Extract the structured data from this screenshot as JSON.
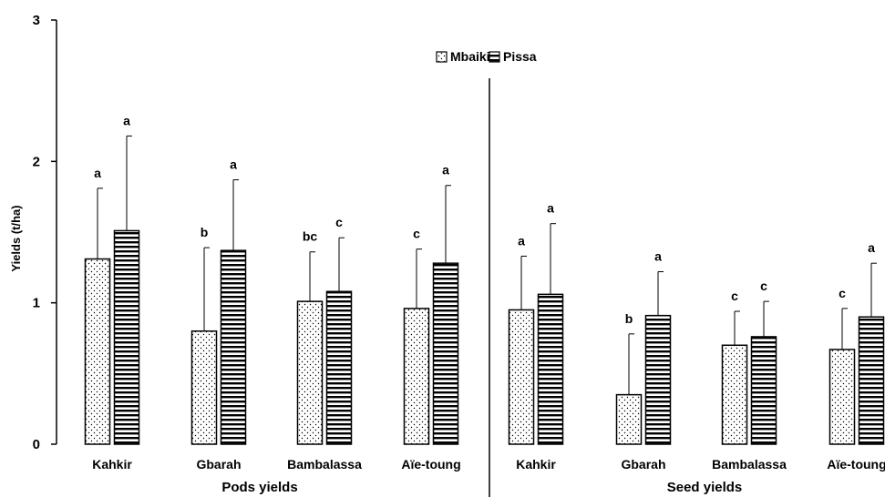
{
  "chart_data": {
    "type": "bar",
    "ylabel": "Yields (t/ha)",
    "ylim": [
      0,
      3
    ],
    "yticks": [
      "0",
      "1",
      "2",
      "3"
    ],
    "grid": false,
    "legend_position": "top-center",
    "series": [
      {
        "name": "Mbaiki",
        "pattern": "dots"
      },
      {
        "name": "Pissa",
        "pattern": "horizontal-stripes"
      }
    ],
    "groups": [
      {
        "label": "Pods yields",
        "categories": [
          {
            "label": "Kahkir",
            "values": [
              1.31,
              1.51
            ],
            "errors": [
              0.5,
              0.67
            ],
            "sig": [
              "a",
              "a"
            ]
          },
          {
            "label": "Gbarah",
            "values": [
              0.8,
              1.37
            ],
            "errors": [
              0.59,
              0.5
            ],
            "sig": [
              "b",
              "a"
            ]
          },
          {
            "label": "Bambalassa",
            "values": [
              1.01,
              1.08
            ],
            "errors": [
              0.35,
              0.38
            ],
            "sig": [
              "bc",
              "c"
            ]
          },
          {
            "label": "Aïe-toung",
            "values": [
              0.96,
              1.28
            ],
            "errors": [
              0.42,
              0.55
            ],
            "sig": [
              "c",
              "a"
            ]
          }
        ]
      },
      {
        "label": "Seed yields",
        "categories": [
          {
            "label": "Kahkir",
            "values": [
              0.95,
              1.06
            ],
            "errors": [
              0.38,
              0.5
            ],
            "sig": [
              "a",
              "a"
            ]
          },
          {
            "label": "Gbarah",
            "values": [
              0.35,
              0.91
            ],
            "errors": [
              0.43,
              0.31
            ],
            "sig": [
              "b",
              "a"
            ]
          },
          {
            "label": "Bambalassa",
            "values": [
              0.7,
              0.76
            ],
            "errors": [
              0.24,
              0.25
            ],
            "sig": [
              "c",
              "c"
            ]
          },
          {
            "label": "Aïe-toung",
            "values": [
              0.67,
              0.9
            ],
            "errors": [
              0.29,
              0.38
            ],
            "sig": [
              "c",
              "a"
            ]
          }
        ]
      }
    ],
    "colors": {
      "axis": "#000000",
      "bar_fill": "#ffffff"
    }
  }
}
